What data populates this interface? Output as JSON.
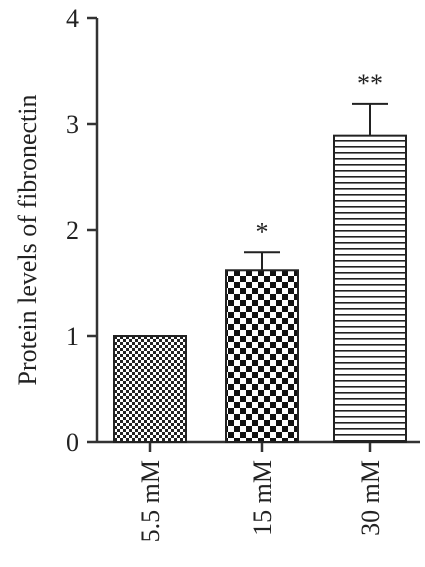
{
  "chart_data": {
    "type": "bar",
    "ylabel": "Protein levels of fibronectin",
    "xlabel": "",
    "categories": [
      "5.5 mM",
      "15 mM",
      "30 mM"
    ],
    "values": [
      1.0,
      1.62,
      2.89
    ],
    "error_upper": [
      0.0,
      0.17,
      0.3
    ],
    "annotations": [
      "",
      "*",
      "**"
    ],
    "patterns": [
      "fine-checker",
      "large-checker",
      "horizontal-stripes"
    ],
    "ylim": [
      0,
      4
    ],
    "yticks": [
      0,
      1,
      2,
      3,
      4
    ],
    "grid": false,
    "legend": "none"
  }
}
